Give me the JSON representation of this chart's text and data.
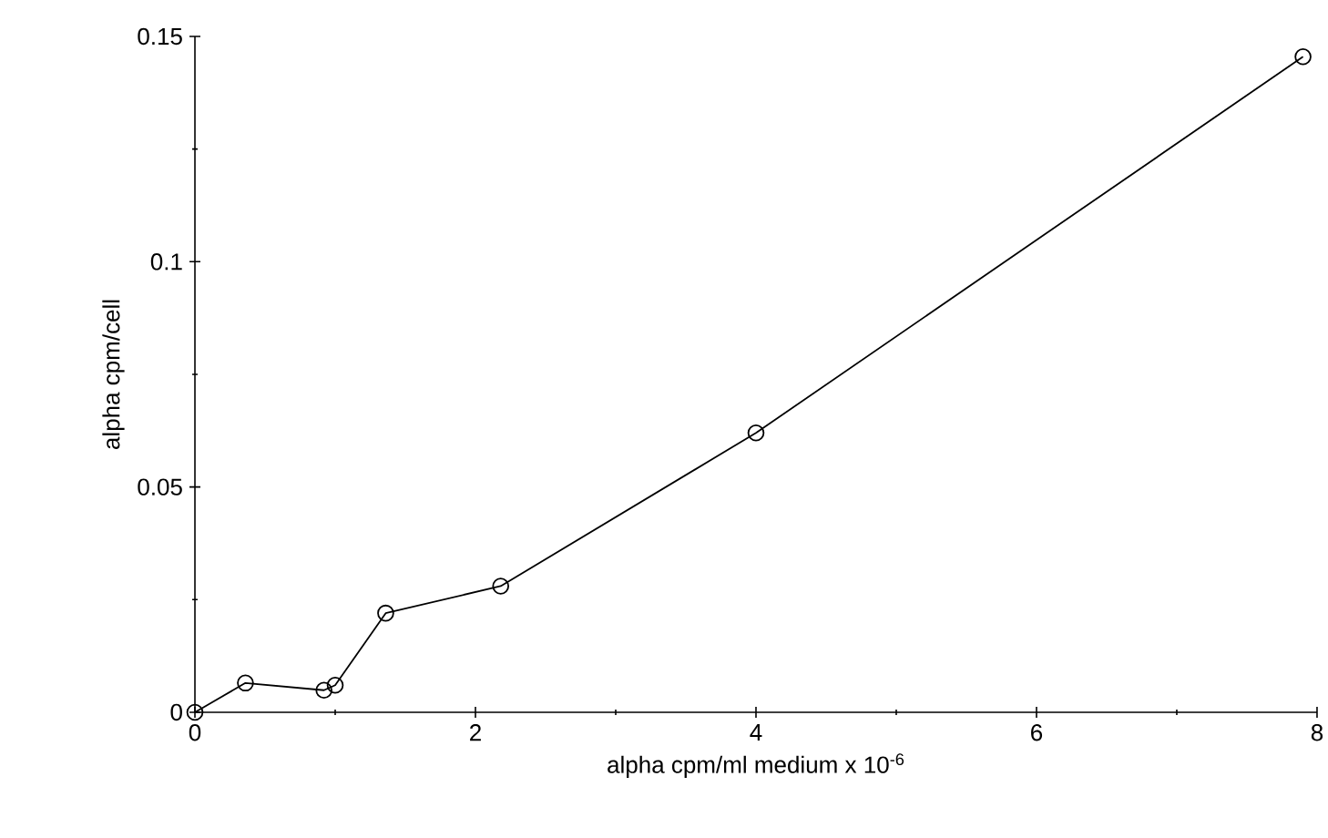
{
  "chart_data": {
    "type": "line",
    "xlabel": "alpha cpm/ml medium x 10$^{-6}$",
    "ylabel": "alpha cpm/cell",
    "x": [
      0,
      0.36,
      0.92,
      1.0,
      1.36,
      2.18,
      4.0,
      7.9
    ],
    "series": [
      {
        "color": "#000000",
        "values": [
          0,
          0.0065,
          0.0049,
          0.006,
          0.022,
          0.028,
          0.062,
          0.1455
        ]
      }
    ],
    "xlim": [
      0,
      8
    ],
    "ylim": [
      0,
      0.15
    ],
    "xticks": [
      0,
      2,
      4,
      6,
      8
    ],
    "yticks": [
      0,
      0.05,
      0.1,
      0.15
    ],
    "marker": "circle",
    "line_style": "solid",
    "grid": false
  }
}
